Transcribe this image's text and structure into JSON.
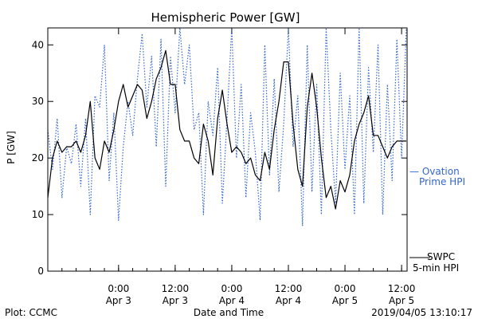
{
  "chart_data": {
    "type": "line",
    "title": "Hemispheric Power [GW]",
    "xlabel": "Date and Time",
    "ylabel": "P [GW]",
    "ylim": [
      0,
      43
    ],
    "yticks": [
      0,
      10,
      20,
      30,
      40
    ],
    "xlim": [
      "2019-04-02 09:00",
      "2019-04-05 13:10"
    ],
    "xticks": [
      {
        "t": "2019-04-03 00:00",
        "l1": "0:00",
        "l2": "Apr 3"
      },
      {
        "t": "2019-04-03 12:00",
        "l1": "12:00",
        "l2": "Apr 3"
      },
      {
        "t": "2019-04-04 00:00",
        "l1": "0:00",
        "l2": "Apr 4"
      },
      {
        "t": "2019-04-04 12:00",
        "l1": "12:00",
        "l2": "Apr 4"
      },
      {
        "t": "2019-04-05 00:00",
        "l1": "0:00",
        "l2": "Apr 5"
      },
      {
        "t": "2019-04-05 12:00",
        "l1": "12:00",
        "l2": "Apr 5"
      }
    ],
    "grid": false,
    "legend_position": "right",
    "series": [
      {
        "name": "Ovation Prime HPI",
        "label": [
          "— Ovation",
          "Prime HPI"
        ],
        "color": "#3366cc",
        "style": "dotted",
        "x": [
          "2019-04-02 09:00",
          "2019-04-02 10:00",
          "2019-04-02 11:00",
          "2019-04-02 12:00",
          "2019-04-02 13:00",
          "2019-04-02 14:00",
          "2019-04-02 15:00",
          "2019-04-02 16:00",
          "2019-04-02 17:00",
          "2019-04-02 18:00",
          "2019-04-02 19:00",
          "2019-04-02 20:00",
          "2019-04-02 21:00",
          "2019-04-02 22:00",
          "2019-04-02 23:00",
          "2019-04-03 00:00",
          "2019-04-03 01:00",
          "2019-04-03 02:00",
          "2019-04-03 03:00",
          "2019-04-03 04:00",
          "2019-04-03 05:00",
          "2019-04-03 06:00",
          "2019-04-03 07:00",
          "2019-04-03 08:00",
          "2019-04-03 09:00",
          "2019-04-03 10:00",
          "2019-04-03 11:00",
          "2019-04-03 12:00",
          "2019-04-03 13:00",
          "2019-04-03 14:00",
          "2019-04-03 15:00",
          "2019-04-03 16:00",
          "2019-04-03 17:00",
          "2019-04-03 18:00",
          "2019-04-03 19:00",
          "2019-04-03 20:00",
          "2019-04-03 21:00",
          "2019-04-03 22:00",
          "2019-04-03 23:00",
          "2019-04-04 00:00",
          "2019-04-04 01:00",
          "2019-04-04 02:00",
          "2019-04-04 03:00",
          "2019-04-04 04:00",
          "2019-04-04 05:00",
          "2019-04-04 06:00",
          "2019-04-04 07:00",
          "2019-04-04 08:00",
          "2019-04-04 09:00",
          "2019-04-04 10:00",
          "2019-04-04 11:00",
          "2019-04-04 12:00",
          "2019-04-04 13:00",
          "2019-04-04 14:00",
          "2019-04-04 15:00",
          "2019-04-04 16:00",
          "2019-04-04 17:00",
          "2019-04-04 18:00",
          "2019-04-04 19:00",
          "2019-04-04 20:00",
          "2019-04-04 21:00",
          "2019-04-04 22:00",
          "2019-04-04 23:00",
          "2019-04-05 00:00",
          "2019-04-05 01:00",
          "2019-04-05 02:00",
          "2019-04-05 03:00",
          "2019-04-05 04:00",
          "2019-04-05 05:00",
          "2019-04-05 06:00",
          "2019-04-05 07:00",
          "2019-04-05 08:00",
          "2019-04-05 09:00",
          "2019-04-05 10:00",
          "2019-04-05 11:00",
          "2019-04-05 12:00",
          "2019-04-05 13:00"
        ],
        "y": [
          25,
          18,
          27,
          13,
          22,
          19,
          26,
          15,
          27,
          10,
          31,
          29,
          40,
          16,
          28,
          9,
          22,
          30,
          24,
          34,
          42,
          29,
          38,
          22,
          41,
          15,
          38,
          28,
          43,
          33,
          40,
          25,
          28,
          10,
          30,
          24,
          36,
          12,
          27,
          43,
          20,
          33,
          13,
          28,
          21,
          9,
          40,
          17,
          34,
          14,
          26,
          43,
          22,
          31,
          8,
          40,
          14,
          33,
          10,
          43,
          25,
          12,
          35,
          18,
          31,
          10,
          43,
          12,
          36,
          21,
          40,
          10,
          33,
          16,
          41,
          20,
          43
        ]
      },
      {
        "name": "SWPC 5-min HPI",
        "label": [
          "SWPC",
          "5-min HPI"
        ],
        "color": "#000000",
        "style": "solid",
        "x": [
          "2019-04-02 09:00",
          "2019-04-02 10:00",
          "2019-04-02 11:00",
          "2019-04-02 12:00",
          "2019-04-02 13:00",
          "2019-04-02 14:00",
          "2019-04-02 15:00",
          "2019-04-02 16:00",
          "2019-04-02 17:00",
          "2019-04-02 18:00",
          "2019-04-02 19:00",
          "2019-04-02 20:00",
          "2019-04-02 21:00",
          "2019-04-02 22:00",
          "2019-04-02 23:00",
          "2019-04-03 00:00",
          "2019-04-03 01:00",
          "2019-04-03 02:00",
          "2019-04-03 03:00",
          "2019-04-03 04:00",
          "2019-04-03 05:00",
          "2019-04-03 06:00",
          "2019-04-03 07:00",
          "2019-04-03 08:00",
          "2019-04-03 09:00",
          "2019-04-03 10:00",
          "2019-04-03 11:00",
          "2019-04-03 12:00",
          "2019-04-03 13:00",
          "2019-04-03 14:00",
          "2019-04-03 15:00",
          "2019-04-03 16:00",
          "2019-04-03 17:00",
          "2019-04-03 18:00",
          "2019-04-03 19:00",
          "2019-04-03 20:00",
          "2019-04-03 21:00",
          "2019-04-03 22:00",
          "2019-04-03 23:00",
          "2019-04-04 00:00",
          "2019-04-04 01:00",
          "2019-04-04 02:00",
          "2019-04-04 03:00",
          "2019-04-04 04:00",
          "2019-04-04 05:00",
          "2019-04-04 06:00",
          "2019-04-04 07:00",
          "2019-04-04 08:00",
          "2019-04-04 09:00",
          "2019-04-04 10:00",
          "2019-04-04 11:00",
          "2019-04-04 12:00",
          "2019-04-04 13:00",
          "2019-04-04 14:00",
          "2019-04-04 15:00",
          "2019-04-04 16:00",
          "2019-04-04 17:00",
          "2019-04-04 18:00",
          "2019-04-04 19:00",
          "2019-04-04 20:00",
          "2019-04-04 21:00",
          "2019-04-04 22:00",
          "2019-04-04 23:00",
          "2019-04-05 00:00",
          "2019-04-05 01:00",
          "2019-04-05 02:00",
          "2019-04-05 03:00",
          "2019-04-05 04:00",
          "2019-04-05 05:00",
          "2019-04-05 06:00",
          "2019-04-05 07:00",
          "2019-04-05 08:00",
          "2019-04-05 09:00",
          "2019-04-05 10:00",
          "2019-04-05 11:00",
          "2019-04-05 12:00",
          "2019-04-05 13:00"
        ],
        "y": [
          13,
          20,
          23,
          21,
          22,
          22,
          23,
          21,
          24,
          30,
          20,
          18,
          23,
          21,
          25,
          30,
          33,
          29,
          31,
          33,
          32,
          27,
          30,
          34,
          36,
          39,
          33,
          33,
          25,
          23,
          23,
          20,
          19,
          26,
          23,
          17,
          27,
          32,
          26,
          21,
          22,
          21,
          19,
          20,
          17,
          16,
          21,
          18,
          25,
          30,
          37,
          37,
          26,
          18,
          15,
          29,
          35,
          29,
          20,
          13,
          15,
          11,
          16,
          14,
          17,
          23,
          26,
          28,
          31,
          24,
          24,
          22,
          20,
          22,
          23,
          23,
          23
        ]
      }
    ]
  },
  "footer": {
    "left": "Plot: CCMC",
    "center": "Date and Time",
    "right": "2019/04/05 13:10:17"
  }
}
